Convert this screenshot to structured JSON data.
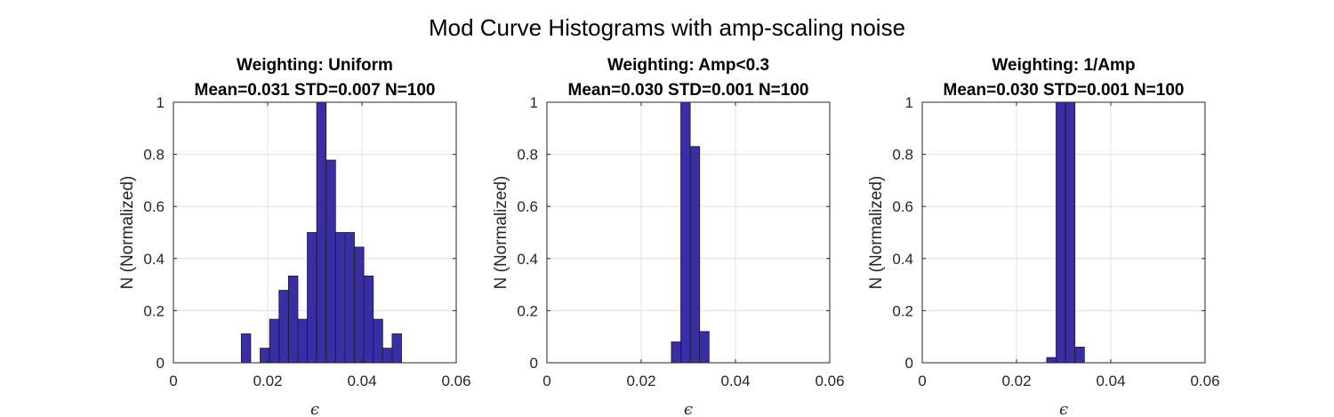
{
  "figure": {
    "title": "Mod Curve Histograms with amp-scaling noise"
  },
  "colors": {
    "bar_fill": "#3a2ea6",
    "bar_edge": "#1a1a1a",
    "grid": "#e0e0e0",
    "axes": "#262626"
  },
  "chart_data": [
    {
      "type": "bar",
      "title": "Weighting: Uniform",
      "subtitle": "Mean=0.031 STD=0.007 N=100",
      "xlabel": "ϵ",
      "ylabel": "N (Normalized)",
      "xlim": [
        0,
        0.06
      ],
      "ylim": [
        0,
        1
      ],
      "xticks": [
        0,
        0.02,
        0.04,
        0.06
      ],
      "xtick_labels": [
        "0",
        "0.02",
        "0.04",
        "0.06"
      ],
      "yticks": [
        0,
        0.2,
        0.4,
        0.6,
        0.8,
        1
      ],
      "ytick_labels": [
        "0",
        "0.2",
        "0.4",
        "0.6",
        "0.8",
        "1"
      ],
      "grid": true,
      "bin_width": 0.002,
      "bin_start": 0.0104,
      "values": [
        0,
        0,
        0.111,
        0,
        0.056,
        0.167,
        0.278,
        0.333,
        0.167,
        0.5,
        1.0,
        0.778,
        0.5,
        0.5,
        0.444,
        0.333,
        0.167,
        0.056,
        0.111,
        0,
        0
      ]
    },
    {
      "type": "bar",
      "title": "Weighting: Amp<0.3",
      "subtitle": "Mean=0.030 STD=0.001 N=100",
      "xlabel": "ϵ",
      "ylabel": "N (Normalized)",
      "xlim": [
        0,
        0.06
      ],
      "ylim": [
        0,
        1
      ],
      "xticks": [
        0,
        0.02,
        0.04,
        0.06
      ],
      "xtick_labels": [
        "0",
        "0.02",
        "0.04",
        "0.06"
      ],
      "yticks": [
        0,
        0.2,
        0.4,
        0.6,
        0.8,
        1
      ],
      "ytick_labels": [
        "0",
        "0.2",
        "0.4",
        "0.6",
        "0.8",
        "1"
      ],
      "grid": true,
      "bin_width": 0.002,
      "bin_start": 0.0104,
      "values": [
        0,
        0,
        0,
        0,
        0,
        0,
        0,
        0,
        0.08,
        1.0,
        0.83,
        0.12,
        0,
        0,
        0,
        0,
        0,
        0,
        0,
        0,
        0
      ]
    },
    {
      "type": "bar",
      "title": "Weighting: 1/Amp",
      "subtitle": "Mean=0.030 STD=0.001 N=100",
      "xlabel": "ϵ",
      "ylabel": "N (Normalized)",
      "xlim": [
        0,
        0.06
      ],
      "ylim": [
        0,
        1
      ],
      "xticks": [
        0,
        0.02,
        0.04,
        0.06
      ],
      "xtick_labels": [
        "0",
        "0.02",
        "0.04",
        "0.06"
      ],
      "yticks": [
        0,
        0.2,
        0.4,
        0.6,
        0.8,
        1
      ],
      "ytick_labels": [
        "0",
        "0.2",
        "0.4",
        "0.6",
        "0.8",
        "1"
      ],
      "grid": true,
      "bin_width": 0.002,
      "bin_start": 0.0104,
      "values": [
        0,
        0,
        0,
        0,
        0,
        0,
        0,
        0,
        0.02,
        1.0,
        1.0,
        0.06,
        0,
        0,
        0,
        0,
        0,
        0,
        0,
        0,
        0
      ]
    }
  ]
}
